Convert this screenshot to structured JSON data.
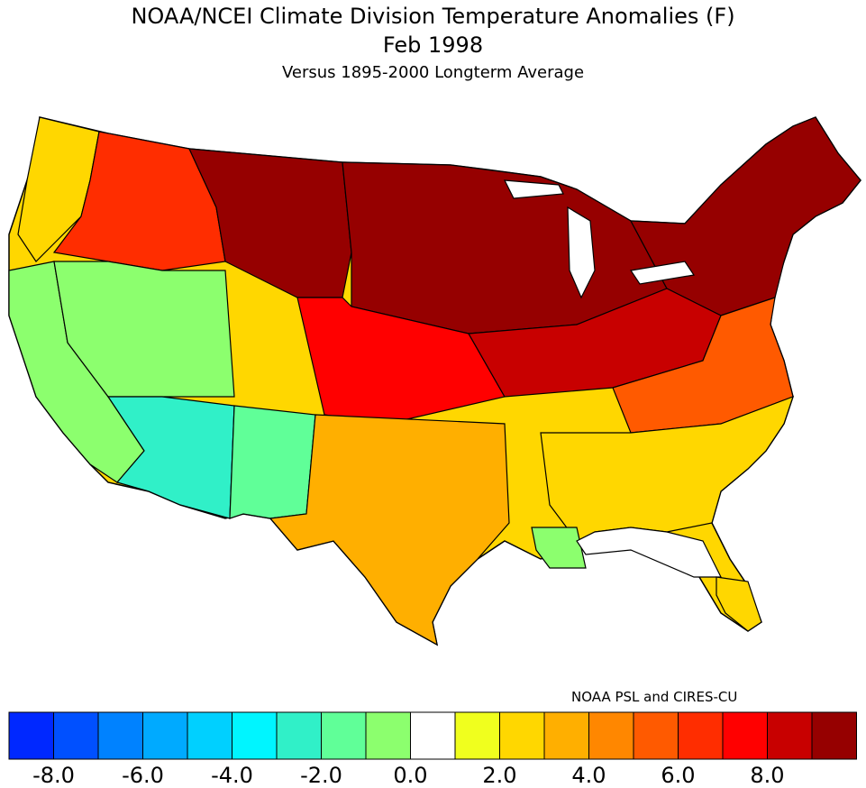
{
  "header": {
    "title": "NOAA/NCEI Climate Division Temperature Anomalies (F)",
    "date": "Feb 1998",
    "subtitle": "Versus 1895-2000 Longterm Average"
  },
  "credit": "NOAA PSL and CIRES-CU",
  "legend": {
    "colors": [
      "#0028ff",
      "#0050ff",
      "#0082ff",
      "#00aaff",
      "#00d0ff",
      "#00f5ff",
      "#30f0c8",
      "#60ff98",
      "#8cff6e",
      "#ffffff",
      "#f0ff1e",
      "#ffd700",
      "#ffaf00",
      "#ff8700",
      "#ff5a00",
      "#ff2d00",
      "#ff0000",
      "#c80000",
      "#960000"
    ],
    "ticks": [
      "-8.0",
      "-6.0",
      "-4.0",
      "-2.0",
      "0.0",
      "2.0",
      "4.0",
      "6.0",
      "8.0"
    ]
  },
  "map": {
    "regions": [
      {
        "name": "pacific-northwest-coast",
        "anomaly": 1.8
      },
      {
        "name": "northern-rockies",
        "anomaly": 5.5
      },
      {
        "name": "northern-plains",
        "anomaly": 9.5
      },
      {
        "name": "upper-midwest-great-lakes",
        "anomaly": 9.5
      },
      {
        "name": "northeast",
        "anomaly": 9.0
      },
      {
        "name": "central-plains",
        "anomaly": 7.0
      },
      {
        "name": "ohio-valley",
        "anomaly": 7.5
      },
      {
        "name": "mid-atlantic",
        "anomaly": 5.0
      },
      {
        "name": "southeast-coast",
        "anomaly": 2.0
      },
      {
        "name": "california",
        "anomaly": -1.2
      },
      {
        "name": "great-basin",
        "anomaly": -1.0
      },
      {
        "name": "arizona",
        "anomaly": -3.5
      },
      {
        "name": "new-mexico",
        "anomaly": -2.0
      },
      {
        "name": "texas",
        "anomaly": 2.5
      },
      {
        "name": "louisiana",
        "anomaly": -1.0
      },
      {
        "name": "gulf-coast",
        "anomaly": 0.0
      },
      {
        "name": "south-florida",
        "anomaly": 1.5
      }
    ]
  }
}
